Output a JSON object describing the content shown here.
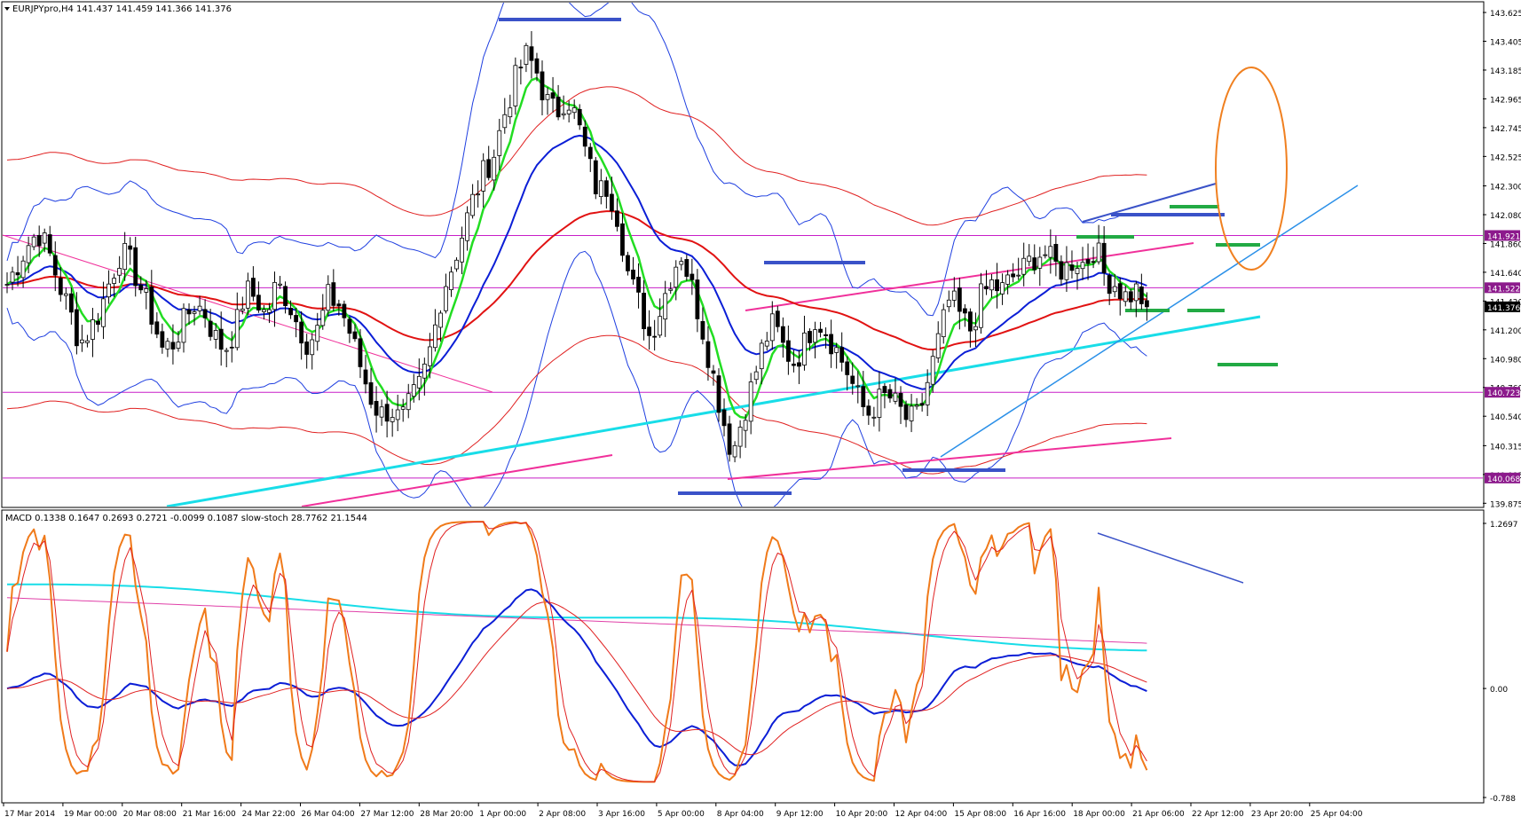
{
  "colors": {
    "background": "#ffffff",
    "frame": "#000000",
    "bull_candle": "#ffffff",
    "bear_candle": "#000000",
    "ema_fast": "#22dd22",
    "ema_mid": "#0b1ed6",
    "ema_slow": "#e11212",
    "trend_cyan": "#18dde8",
    "bands_blue": "#1f3fe0",
    "bands_red": "#e02020",
    "magenta": "#c81fc8",
    "pink_line": "#f0309a",
    "support_blue": "#3a52c8",
    "green_marks": "#22aa44",
    "orange": "#f08020",
    "steel_blue": "#2b90e8",
    "macd_blue": "#0b1ed6",
    "macd_red": "#e02020",
    "macd_cyan": "#18dde8",
    "macd_pink": "#e040a8",
    "stoch_orange": "#f07a1a",
    "level_label_bg": "#8c1a8c",
    "price_label_bg": "#000000"
  },
  "main": {
    "header": "EURJPYpro,H4  141.437 141.459 141.366 141.376",
    "header_icon": "triangle-down-icon",
    "y_ticks": [
      "143.625",
      "143.405",
      "143.185",
      "142.965",
      "142.745",
      "142.525",
      "142.300",
      "142.080",
      "141.860",
      "141.640",
      "141.420",
      "141.200",
      "140.980",
      "140.760",
      "140.540",
      "140.315",
      "140.095",
      "139.875"
    ],
    "levels": [
      {
        "price": 141.921,
        "label": "141.921"
      },
      {
        "price": 141.522,
        "label": "141.522"
      },
      {
        "price": 140.723,
        "label": "140.723"
      },
      {
        "price": 140.068,
        "label": "140.068"
      }
    ],
    "current_price_label": "141.376",
    "price_range": [
      139.85,
      143.7
    ]
  },
  "macd": {
    "header": "MACD 0.1338 0.1647 0.2693 0.2721 -0.0099 0.1087  slow-stoch 28.7762 21.1544",
    "y_ticks": [
      "1.2697",
      "0.00",
      "-0.788"
    ],
    "range": [
      -0.85,
      1.33
    ]
  },
  "x_axis": {
    "labels": [
      "17 Mar 2014",
      "19 Mar 00:00",
      "20 Mar 08:00",
      "21 Mar 16:00",
      "24 Mar 22:00",
      "26 Mar 04:00",
      "27 Mar 12:00",
      "28 Mar 20:00",
      "1 Apr 00:00",
      "2 Apr 08:00",
      "3 Apr 16:00",
      "5 Apr 00:00",
      "8 Apr 04:00",
      "9 Apr 12:00",
      "10 Apr 20:00",
      "12 Apr 04:00",
      "15 Apr 08:00",
      "16 Apr 16:00",
      "18 Apr 00:00",
      "21 Apr 06:00",
      "22 Apr 12:00",
      "23 Apr 20:00",
      "25 Apr 04:00"
    ]
  },
  "chart_data": [
    {
      "type": "candlestick",
      "title": "EURJPYpro,H4",
      "ohlc_last": {
        "open": 141.437,
        "high": 141.459,
        "low": 141.366,
        "close": 141.376
      },
      "ylim": [
        139.875,
        143.625
      ],
      "x_start": "17 Mar 2014",
      "x_end": "25 Apr 04:00",
      "close_path": [
        141.55,
        141.7,
        141.85,
        141.95,
        141.8,
        141.55,
        141.35,
        141.1,
        141.2,
        141.35,
        141.6,
        141.8,
        141.7,
        141.5,
        141.3,
        141.05,
        141.1,
        141.25,
        141.4,
        141.35,
        141.15,
        141.05,
        141.2,
        141.5,
        141.45,
        141.3,
        141.55,
        141.45,
        141.25,
        141.1,
        141.2,
        141.45,
        141.4,
        141.2,
        140.95,
        140.7,
        140.55,
        140.6,
        140.5,
        140.65,
        140.8,
        141.1,
        141.5,
        141.7,
        141.95,
        142.2,
        142.4,
        142.55,
        142.85,
        143.1,
        143.3,
        143.2,
        142.95,
        142.85,
        143.0,
        142.8,
        142.5,
        142.25,
        142.3,
        142.05,
        141.6,
        141.4,
        141.15,
        141.35,
        141.6,
        141.8,
        141.55,
        141.25,
        140.9,
        140.55,
        140.25,
        140.55,
        140.8,
        141.1,
        141.25,
        141.05,
        140.95,
        141.1,
        141.3,
        141.2,
        141.05,
        140.9,
        140.7,
        140.55,
        140.65,
        140.7,
        140.6,
        140.5,
        140.55,
        140.85,
        141.15,
        141.45,
        141.3,
        141.2,
        141.45,
        141.55,
        141.5,
        141.6,
        141.65,
        141.75,
        141.8,
        141.7,
        141.65,
        141.75,
        141.7,
        141.85,
        141.6,
        141.55,
        141.45,
        141.5,
        141.38
      ]
    },
    {
      "type": "line",
      "title": "MACD / slow-stoch",
      "values_last": {
        "macd_main": 0.1338,
        "macd_signal": 0.1647,
        "macd_3": 0.2693,
        "macd_4": 0.2721,
        "macd_hist": -0.0099,
        "macd_6": 0.1087,
        "stoch_k": 28.7762,
        "stoch_d": 21.1544
      },
      "ylim": [
        -0.788,
        1.2697
      ]
    }
  ]
}
